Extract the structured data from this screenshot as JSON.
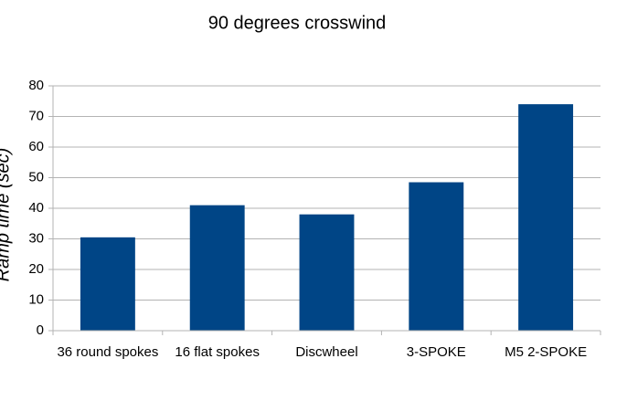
{
  "chart_data": {
    "type": "bar",
    "title": "90 degrees crosswind",
    "y_label": "Ramp time (sec)",
    "categories": [
      "36 round spokes",
      "16 flat spokes",
      "Discwheel",
      "3-SPOKE",
      "M5 2-SPOKE"
    ],
    "values": [
      30.5,
      41,
      38,
      48.5,
      74
    ],
    "color": "#004586",
    "ylim": [
      0,
      80
    ],
    "yticks": [
      0,
      10,
      20,
      30,
      40,
      50,
      60,
      70,
      80
    ],
    "grid": true
  }
}
